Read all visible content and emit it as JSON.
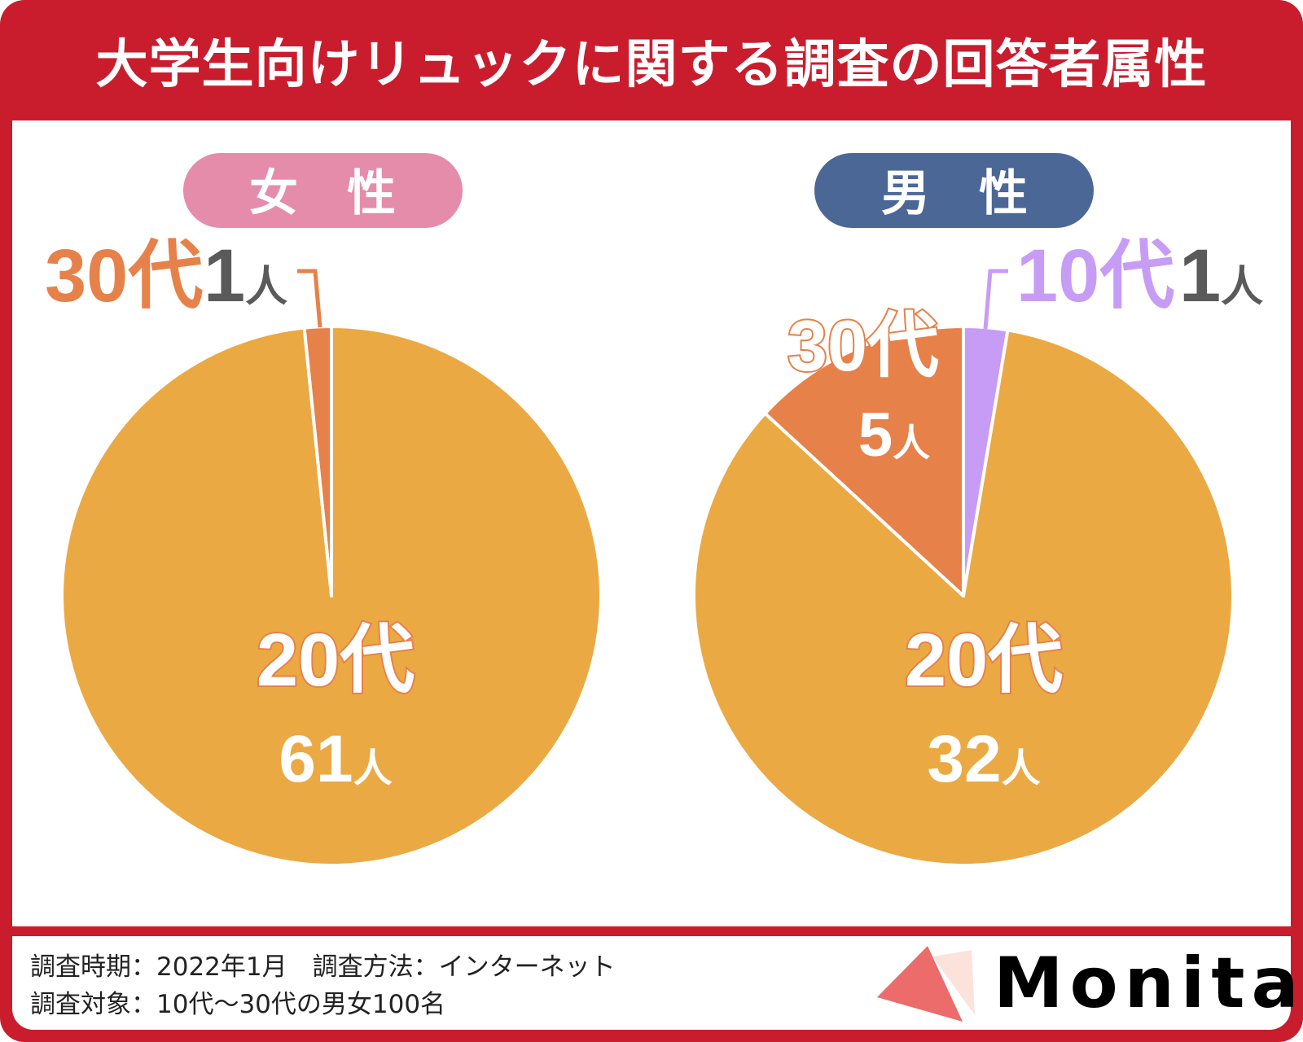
{
  "title": "大学生向けリュックに関する調査の回答者属性",
  "colors": {
    "frame": "#c91d2e",
    "age20": "#eba943",
    "age30": "#e7814a",
    "age10": "#c79cf5",
    "female": "#e58cab",
    "male": "#4b6796",
    "gray": "#5a5a5a"
  },
  "footer": {
    "line1": "調査時期：2022年1月　調査方法：インターネット",
    "line2": "調査対象：10代〜30代の男女100名",
    "logo": "Monita"
  },
  "chart_data": [
    {
      "type": "pie",
      "title": "女　性",
      "unit": "人",
      "slices": [
        {
          "label": "20代",
          "value": 61,
          "value_text": "61",
          "color": "#eba943"
        },
        {
          "label": "30代",
          "value": 1,
          "value_text": "1",
          "color": "#e7814a"
        }
      ]
    },
    {
      "type": "pie",
      "title": "男　性",
      "unit": "人",
      "slices": [
        {
          "label": "10代",
          "value": 1,
          "value_text": "1",
          "color": "#c79cf5"
        },
        {
          "label": "20代",
          "value": 32,
          "value_text": "32",
          "color": "#eba943"
        },
        {
          "label": "30代",
          "value": 5,
          "value_text": "5",
          "color": "#e7814a"
        }
      ]
    }
  ]
}
